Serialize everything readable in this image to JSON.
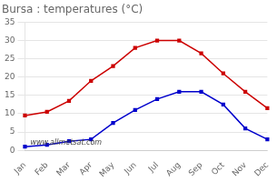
{
  "chart_data": {
    "type": "line",
    "title": "Bursa : temperatures (°C)",
    "categories": [
      "Jan",
      "Feb",
      "Mar",
      "Apr",
      "May",
      "Jun",
      "Jul",
      "Aug",
      "Sep",
      "Oct",
      "Nov",
      "Dec"
    ],
    "series": [
      {
        "color": "#cc0000",
        "marker": "square",
        "values": [
          9.5,
          10.5,
          13.5,
          19.0,
          23.0,
          28.0,
          30.0,
          30.0,
          26.5,
          21.0,
          16.0,
          11.5
        ]
      },
      {
        "color": "#0000cc",
        "marker": "square",
        "values": [
          1.0,
          1.5,
          2.5,
          3.0,
          7.5,
          11.0,
          14.0,
          16.0,
          16.0,
          12.5,
          6.0,
          3.0
        ]
      }
    ],
    "ylim": [
      0,
      35
    ],
    "yticks": [
      0,
      5,
      10,
      15,
      20,
      25,
      30,
      35
    ],
    "grid": true,
    "annotations": [
      "www.allmetsat.com"
    ]
  }
}
